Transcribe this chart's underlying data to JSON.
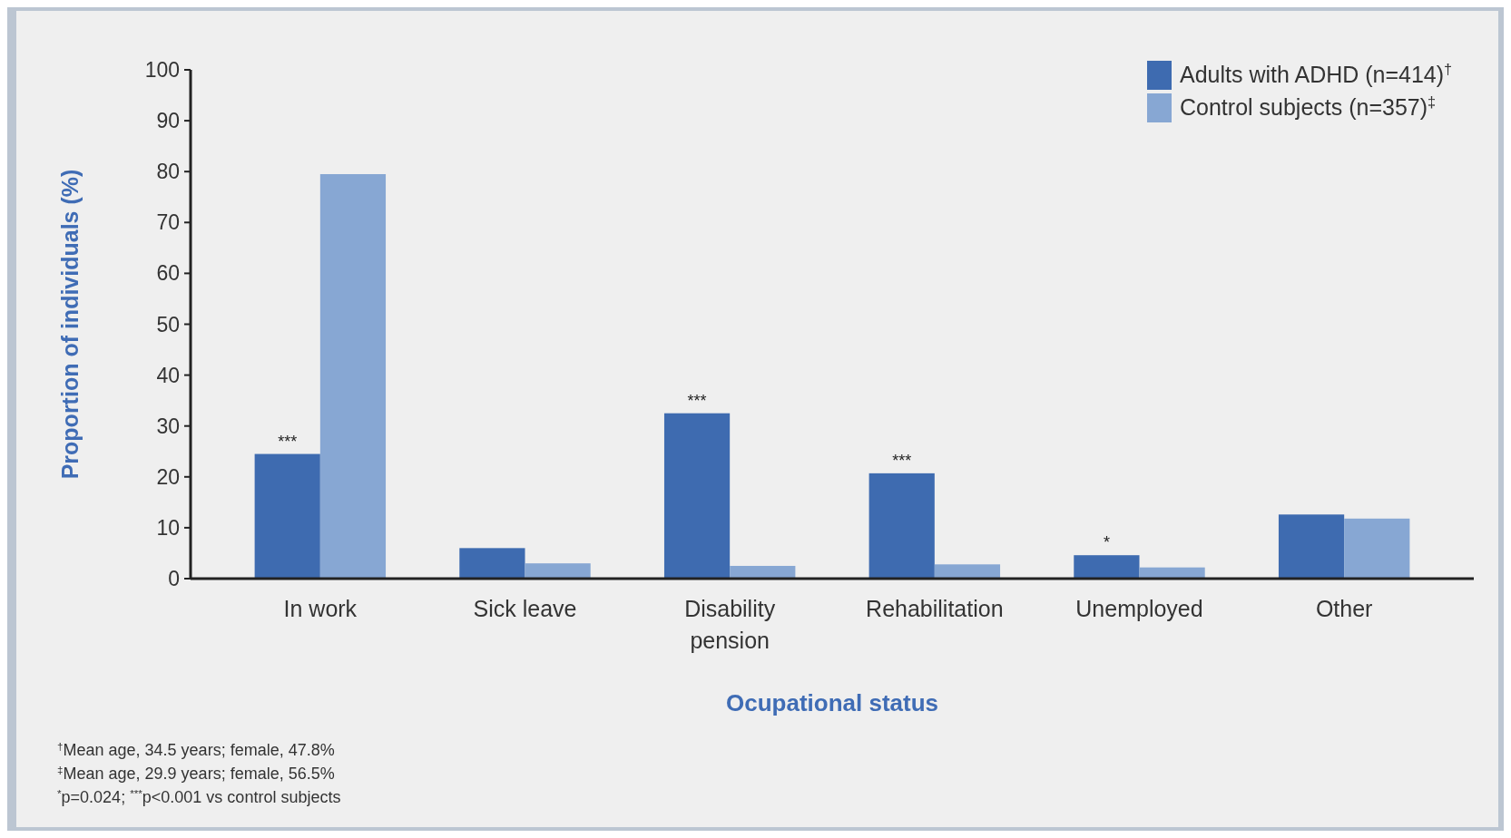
{
  "chart_data": {
    "type": "bar",
    "xlabel": "Ocupational status",
    "ylabel": "Proportion of individuals (%)",
    "categories": [
      "In work",
      "Sick leave",
      "Disability pension",
      "Rehabilitation",
      "Unemployed",
      "Other"
    ],
    "series": [
      {
        "name": "Adults with ADHD (n=414)$^{†}$",
        "color": "#3e6bb0",
        "values": [
          24.5,
          6,
          32.5,
          20.7,
          4.6,
          12.6
        ]
      },
      {
        "name": "Control subjects (n=357)$^{‡}$",
        "color": "#87a7d3",
        "values": [
          79.5,
          3,
          2.5,
          2.8,
          2.2,
          11.8
        ]
      }
    ],
    "ylim": [
      0,
      100
    ],
    "yticks": [
      0,
      10,
      20,
      30,
      40,
      50,
      60,
      70,
      80,
      90,
      100
    ],
    "grid": false,
    "legend": "top right",
    "annotations": [
      {
        "text": "***",
        "x": "In work",
        "y": 24.5
      },
      {
        "text": "***",
        "x": "Disability pension",
        "y": 32.5
      },
      {
        "text": "***",
        "x": "Rehabilitation",
        "y": 20.7
      },
      {
        "text": "*",
        "x": "Unemployed",
        "y": 4.6
      },
      "$^{†}$Mean age, 34.5 years; female, 47.8%",
      "$^{‡}$Mean age, 29.9 years; female, 56.5%",
      "$^{*}$p=0.024; $^{***}$p<0.001 vs control subjects"
    ]
  }
}
